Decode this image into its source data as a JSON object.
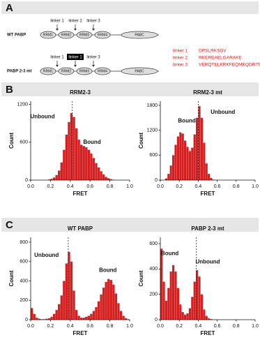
{
  "panels": [
    "A",
    "B",
    "C"
  ],
  "diagram": {
    "rows": [
      {
        "name": "WT PABP",
        "domains": [
          "RRM1",
          "RRM2",
          "RRM3",
          "RRM4",
          "PABC"
        ],
        "linkers": [
          "linker 1",
          "linker 2",
          "linker 3"
        ]
      },
      {
        "name": "PABP 2-3 mt",
        "domains": [
          "RRM1",
          "RRM2",
          "RRM3",
          "RRM4",
          "PABC"
        ],
        "linkers": [
          "linker 1",
          "linker 1",
          "linker 3"
        ]
      }
    ],
    "sequences": [
      {
        "name": "linker 1",
        "seq": "DPSLRKSGV"
      },
      {
        "name": "linker 2",
        "seq": "RKEREAELGARAKE"
      },
      {
        "name": "linker 3",
        "seq": "VERQTELKRKFEQMKQDRITRYQ"
      }
    ]
  },
  "chart_data": [
    {
      "type": "histogram",
      "title": "RRM2-3",
      "x_label": "FRET",
      "y_label": "Count",
      "color": "#d42020",
      "bins": [
        0,
        0.025,
        0.05,
        0.075,
        0.1,
        0.125,
        0.15,
        0.175,
        0.2,
        0.225,
        0.25,
        0.275,
        0.3,
        0.325,
        0.35,
        0.375,
        0.4,
        0.425,
        0.45,
        0.475,
        0.5,
        0.525,
        0.55,
        0.575,
        0.6,
        0.625,
        0.65,
        0.675,
        0.7,
        0.725,
        0.75,
        0.775,
        0.8,
        0.825,
        0.85,
        0.875,
        0.9,
        0.925,
        0.95,
        0.975,
        1
      ],
      "values": [
        0,
        0,
        0,
        0,
        0,
        0,
        0,
        10,
        20,
        40,
        80,
        150,
        280,
        480,
        720,
        920,
        1060,
        1000,
        820,
        640,
        560,
        540,
        520,
        480,
        420,
        350,
        270,
        200,
        140,
        90,
        50,
        30,
        15,
        5,
        0,
        0,
        0,
        0,
        0,
        0
      ],
      "vline": 0.42,
      "annotations": [
        "Unbound",
        "Bound"
      ],
      "xlim": [
        0,
        1
      ],
      "ylim": [
        0,
        1250
      ],
      "xticks": [
        {
          "value": 0,
          "label": "0.0"
        },
        0.2,
        0.4,
        0.6,
        0.8,
        {
          "value": 1,
          "label": "1.0"
        }
      ],
      "yticks": [
        0,
        600,
        1200
      ]
    },
    {
      "type": "histogram",
      "title": "RRM2-3 mt",
      "x_label": "FRET",
      "y_label": "Count",
      "color": "#d42020",
      "bins": [
        0,
        0.025,
        0.05,
        0.075,
        0.1,
        0.125,
        0.15,
        0.175,
        0.2,
        0.225,
        0.25,
        0.275,
        0.3,
        0.325,
        0.35,
        0.375,
        0.4,
        0.425,
        0.45,
        0.475,
        0.5,
        0.525,
        0.55,
        0.575,
        0.6,
        0.625,
        0.65,
        0.675,
        0.7,
        0.725,
        0.75,
        0.775,
        0.8,
        0.825,
        0.85,
        0.875,
        0.9,
        0.925,
        0.95,
        0.975,
        1
      ],
      "values": [
        0,
        0,
        40,
        150,
        350,
        600,
        850,
        1050,
        1150,
        1120,
        950,
        800,
        700,
        780,
        1100,
        1500,
        1780,
        1500,
        900,
        400,
        150,
        50,
        10,
        0,
        0,
        0,
        0,
        0,
        0,
        0,
        0,
        0,
        0,
        0,
        0,
        0,
        0,
        0,
        0,
        0
      ],
      "vline": 0.4,
      "annotations": [
        "Bound",
        "Unbound"
      ],
      "xlim": [
        0,
        1
      ],
      "ylim": [
        0,
        1900
      ],
      "xticks": [
        {
          "value": 0,
          "label": "0.0"
        },
        0.2,
        0.4,
        0.6,
        0.8,
        {
          "value": 1,
          "label": "1.0"
        }
      ],
      "yticks": [
        0,
        600,
        1200,
        1800
      ]
    },
    {
      "type": "histogram",
      "title": "WT PABP",
      "x_label": "FRET",
      "y_label": "Count",
      "color": "#d42020",
      "bins": [
        0,
        0.025,
        0.05,
        0.075,
        0.1,
        0.125,
        0.15,
        0.175,
        0.2,
        0.225,
        0.25,
        0.275,
        0.3,
        0.325,
        0.35,
        0.375,
        0.4,
        0.425,
        0.45,
        0.475,
        0.5,
        0.525,
        0.55,
        0.575,
        0.6,
        0.625,
        0.65,
        0.675,
        0.7,
        0.725,
        0.75,
        0.775,
        0.8,
        0.825,
        0.85,
        0.875,
        0.9,
        0.925,
        0.95,
        0.975,
        1
      ],
      "values": [
        120,
        60,
        20,
        10,
        5,
        5,
        10,
        15,
        30,
        60,
        100,
        160,
        250,
        400,
        580,
        700,
        600,
        300,
        100,
        40,
        20,
        20,
        30,
        40,
        60,
        90,
        130,
        190,
        260,
        330,
        390,
        420,
        410,
        360,
        270,
        170,
        90,
        40,
        15,
        5
      ],
      "vline": 0.38,
      "annotations": [
        "Unbound",
        "Bound"
      ],
      "xlim": [
        0,
        1
      ],
      "ylim": [
        0,
        850
      ],
      "xticks": [
        {
          "value": 0,
          "label": "0.0"
        },
        0.2,
        0.4,
        0.6,
        0.8,
        {
          "value": 1,
          "label": "1.0"
        }
      ],
      "yticks": [
        0,
        200,
        400,
        600,
        800
      ]
    },
    {
      "type": "histogram",
      "title": "PABP 2-3 mt",
      "x_label": "FRET",
      "y_label": "Count",
      "color": "#d42020",
      "bins": [
        0,
        0.025,
        0.05,
        0.075,
        0.1,
        0.125,
        0.15,
        0.175,
        0.2,
        0.225,
        0.25,
        0.275,
        0.3,
        0.325,
        0.35,
        0.375,
        0.4,
        0.425,
        0.45,
        0.475,
        0.5,
        0.525,
        0.55,
        0.575,
        0.6,
        0.625,
        0.65,
        0.675,
        0.7,
        0.725,
        0.75,
        0.775,
        0.8,
        0.825,
        0.85,
        0.875,
        0.9,
        0.925,
        0.95,
        0.975,
        1
      ],
      "values": [
        560,
        300,
        150,
        250,
        380,
        430,
        380,
        250,
        120,
        60,
        40,
        50,
        90,
        180,
        300,
        390,
        340,
        200,
        80,
        30,
        10,
        5,
        0,
        0,
        0,
        0,
        0,
        0,
        0,
        0,
        0,
        0,
        0,
        0,
        0,
        0,
        0,
        0,
        0,
        0
      ],
      "vline": 0.38,
      "annotations": [
        "Bound",
        "Unbound"
      ],
      "xlim": [
        0,
        1
      ],
      "ylim": [
        0,
        650
      ],
      "xticks": [
        {
          "value": 0,
          "label": "0.0"
        },
        0.2,
        0.4,
        0.6,
        0.8,
        {
          "value": 1,
          "label": "1.0"
        }
      ],
      "yticks": [
        0,
        200,
        400,
        600
      ]
    }
  ]
}
